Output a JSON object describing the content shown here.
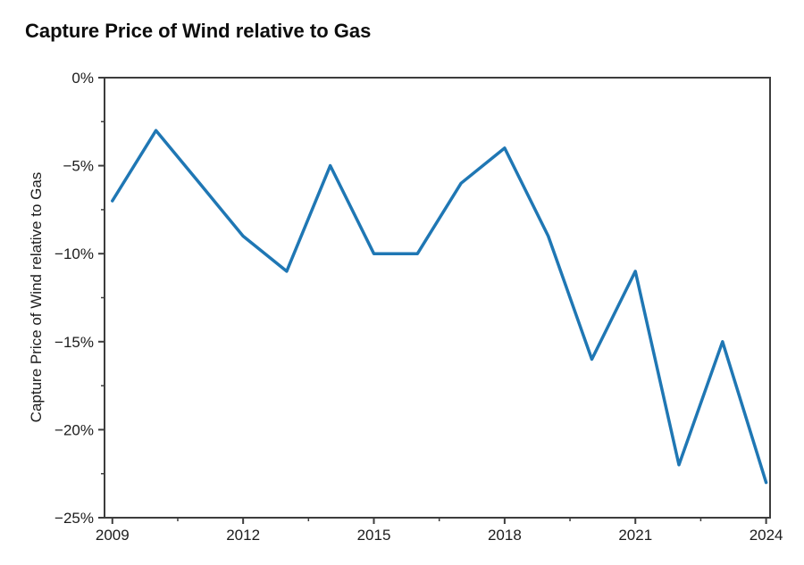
{
  "header": {
    "title": "Capture Price of Wind relative to Gas"
  },
  "chart_data": {
    "type": "line",
    "title": "Capture Price of Wind relative to Gas",
    "xlabel": "",
    "ylabel": "Capture Price of Wind relative to Gas",
    "series": [
      {
        "name": "Capture Price of Wind relative to Gas",
        "x": [
          2009,
          2010,
          2011,
          2012,
          2013,
          2014,
          2015,
          2016,
          2017,
          2018,
          2019,
          2020,
          2021,
          2022,
          2023,
          2024
        ],
        "values": [
          -7,
          -3,
          -6,
          -9,
          -11,
          -5,
          -10,
          -10,
          -6,
          -4,
          -9,
          -16,
          -11,
          -22,
          -15,
          -23
        ],
        "unit": "%"
      }
    ],
    "xlim": [
      2008.82,
      2024.09
    ],
    "ylim": [
      -25,
      0
    ],
    "x_major_ticks": [
      2009,
      2012,
      2015,
      2018,
      2021,
      2024
    ],
    "x_major_tick_labels": [
      "2009",
      "2012",
      "2015",
      "2018",
      "2021",
      "2024"
    ],
    "x_minor_ticks": [
      2010.5,
      2013.5,
      2016.5,
      2019.5,
      2022.5
    ],
    "y_major_ticks": [
      0,
      -5,
      -10,
      -15,
      -20,
      -25
    ],
    "y_major_tick_labels": [
      "0%",
      "−5%",
      "−10%",
      "−15%",
      "−20%",
      "−25%"
    ],
    "y_minor_ticks": [
      -2.5,
      -7.5,
      -12.5,
      -17.5,
      -22.5
    ],
    "grid": false,
    "legend": false,
    "line_color": "#1f77b4",
    "axis_color": "#3d3d3d",
    "text_color": "#1c1c1c"
  }
}
